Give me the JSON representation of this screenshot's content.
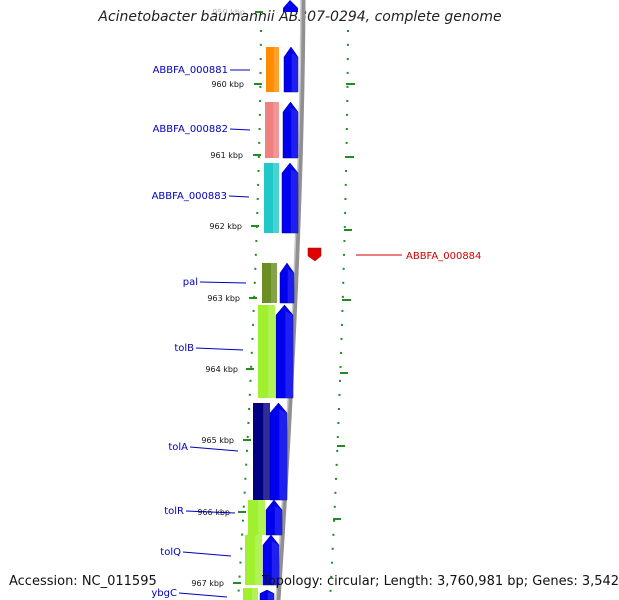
{
  "title": "Acinetobacter baumannii AB307-0294, complete genome",
  "accession": "Accession: NC_011595",
  "topology": "Topology: circular; Length: 3,760,981 bp; Genes: 3,542",
  "ticks": [
    "959 kbp",
    "960 kbp",
    "961 kbp",
    "962 kbp",
    "963 kbp",
    "964 kbp",
    "965 kbp",
    "966 kbp",
    "967 kbp"
  ],
  "genes": [
    {
      "label": "ABBFA_000881",
      "color": "#ff8c00",
      "strand": "forward"
    },
    {
      "label": "ABBFA_000882",
      "color": "#f08080",
      "strand": "forward"
    },
    {
      "label": "ABBFA_000883",
      "color": "#20c8c8",
      "strand": "forward"
    },
    {
      "label": "ABBFA_000884",
      "color": "#e00000",
      "strand": "reverse"
    },
    {
      "label": "pal",
      "color": "#6b8e23",
      "strand": "forward"
    },
    {
      "label": "tolB",
      "color": "#a0f030",
      "strand": "forward"
    },
    {
      "label": "tolA",
      "color": "#000080",
      "strand": "forward"
    },
    {
      "label": "tolR",
      "color": "#a0f030",
      "strand": "forward"
    },
    {
      "label": "tolQ",
      "color": "#a0f030",
      "strand": "forward"
    },
    {
      "label": "ybgC",
      "color": "#a0f030",
      "strand": "forward"
    }
  ],
  "colors": {
    "forward_cds": "#0000ee",
    "forward_label": "#0000bb",
    "reverse_label": "#cc0000",
    "backbone": "#909090",
    "gc_skew": "#228b22"
  }
}
